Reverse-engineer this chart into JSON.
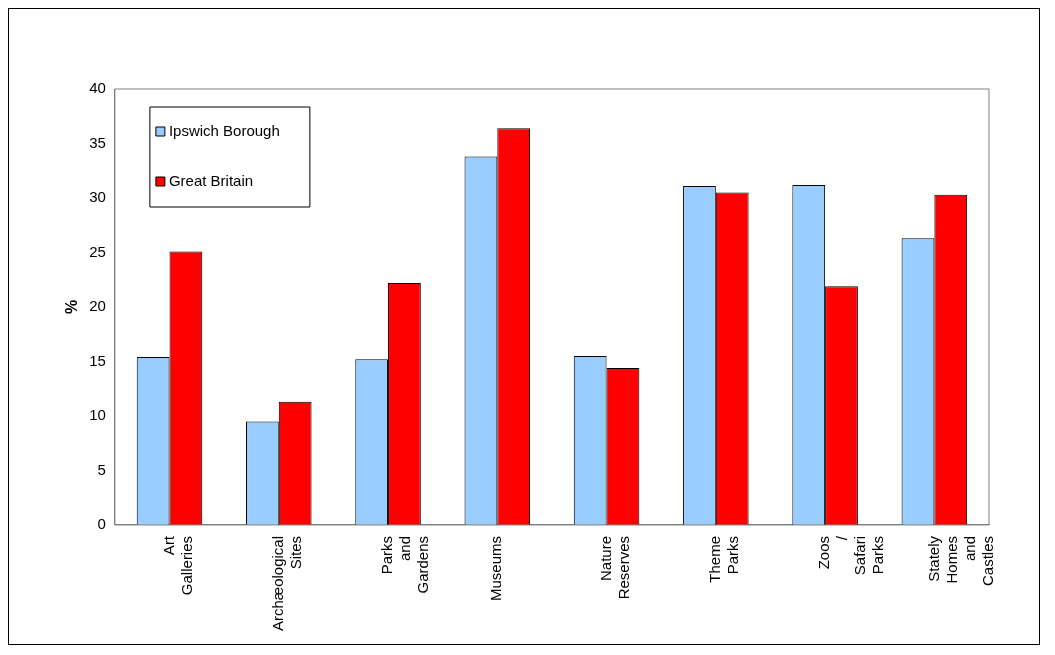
{
  "chart_data": {
    "type": "bar",
    "ylabel": "%",
    "categories": [
      "Art Galleries",
      "Archæological Sites",
      "Parks and Gardens",
      "Museums",
      "Nature Reserves",
      "Theme Parks",
      "Zoos / Safari Parks",
      "Stately Homes and Castles"
    ],
    "series": [
      {
        "name": "Ipswich Borough",
        "color": "#99ccff",
        "values": [
          15.4,
          9.5,
          15.2,
          33.8,
          15.5,
          31.1,
          31.2,
          26.3
        ]
      },
      {
        "name": "Great Britain",
        "color": "#ff0000",
        "values": [
          25.1,
          11.3,
          22.2,
          36.4,
          14.4,
          30.5,
          21.9,
          30.3
        ]
      }
    ],
    "ylim": [
      0,
      40
    ],
    "yticks": [
      0,
      5,
      10,
      15,
      20,
      25,
      30,
      35,
      40
    ],
    "grid": false,
    "legend": "top left"
  }
}
